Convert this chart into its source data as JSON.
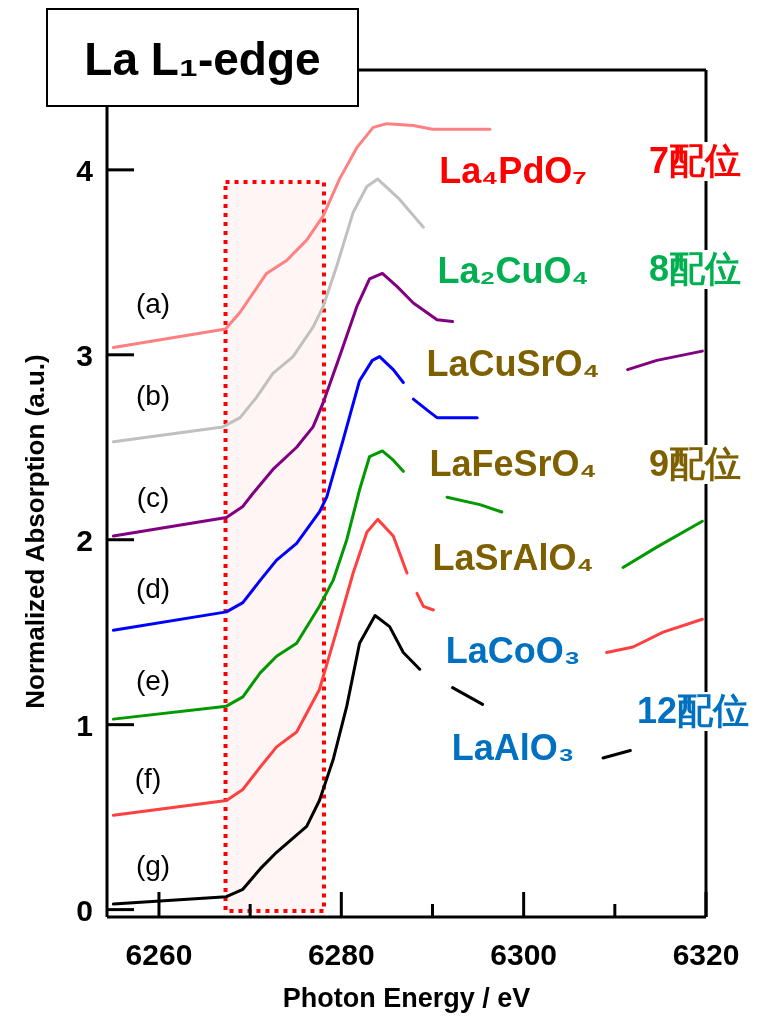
{
  "chart_data": {
    "type": "line",
    "title": "La L₁-edge",
    "xlabel": "Photon Energy / eV",
    "ylabel": "Normalized Absorption (a.u.)",
    "xlim": [
      6254.3,
      6320
    ],
    "ylim": [
      -0.04,
      4.54
    ],
    "xticks": [
      6260,
      {
        "value": 6270,
        "label": null
      },
      6280,
      {
        "value": 6290,
        "label": null
      },
      6300,
      {
        "value": 6310,
        "label": null
      },
      6320
    ],
    "yticks": [
      0,
      1,
      2,
      3,
      4
    ],
    "bands": [
      {
        "axis": "x",
        "from": 6267.3,
        "to": 6278.1,
        "color": "#ff0000"
      }
    ],
    "series": [
      {
        "color": "#ff8080",
        "x": [
          6255,
          6267.3,
          6268.9,
          6271.8,
          6274,
          6276.2,
          6278,
          6279.8,
          6281.7,
          6283.5,
          6285,
          6287.9,
          6290,
          6296.3
        ],
        "values": [
          3.04,
          3.14,
          3.23,
          3.44,
          3.51,
          3.62,
          3.75,
          3.95,
          4.12,
          4.23,
          4.25,
          4.24,
          4.22,
          4.22
        ]
      },
      {
        "color": "#c0c0c0",
        "x": [
          6255,
          6267,
          6268.9,
          6270.7,
          6272.5,
          6274.7,
          6276.9,
          6278,
          6279.5,
          6281.3,
          6282.8,
          6284,
          6286.4,
          6289
        ],
        "values": [
          2.53,
          2.61,
          2.66,
          2.77,
          2.9,
          2.99,
          3.15,
          3.26,
          3.48,
          3.77,
          3.91,
          3.95,
          3.84,
          3.69
        ]
      },
      {
        "color": "#800080",
        "x": [
          6255,
          6267.4,
          6269.2,
          6270.3,
          6272.5,
          6275.1,
          6276.9,
          6278,
          6279.8,
          6281.7,
          6283.1,
          6284.5,
          6286.1,
          6287.9,
          6290.5,
          6292.2
        ],
        "values": [
          2.02,
          2.12,
          2.18,
          2.25,
          2.38,
          2.5,
          2.61,
          2.74,
          2.99,
          3.26,
          3.41,
          3.44,
          3.37,
          3.28,
          3.19,
          3.18
        ]
      },
      {
        "color": "#800080",
        "x": [
          6311.4,
          6314.6,
          6319.6
        ],
        "values": [
          2.92,
          2.97,
          3.02
        ]
      },
      {
        "color": "#0000ff",
        "x": [
          6255,
          6267.4,
          6269.2,
          6271.1,
          6272.9,
          6275.1,
          6277.6,
          6278.4,
          6280.2,
          6282,
          6283.4,
          6284.2,
          6285.7,
          6286.8
        ],
        "values": [
          1.51,
          1.61,
          1.66,
          1.78,
          1.89,
          1.98,
          2.15,
          2.23,
          2.54,
          2.86,
          2.97,
          2.99,
          2.92,
          2.85
        ]
      },
      {
        "color": "#0000ff",
        "x": [
          6287.9,
          6289.7,
          6290.5,
          6294.9
        ],
        "values": [
          2.76,
          2.69,
          2.66,
          2.66
        ]
      },
      {
        "color": "#009900",
        "x": [
          6255,
          6267.4,
          6269.2,
          6271.1,
          6272.9,
          6275.1,
          6277.6,
          6279.1,
          6280.6,
          6282,
          6283.1,
          6284.5,
          6285.7,
          6286.8
        ],
        "values": [
          1.03,
          1.1,
          1.15,
          1.28,
          1.37,
          1.44,
          1.64,
          1.78,
          2.0,
          2.27,
          2.45,
          2.48,
          2.43,
          2.37
        ]
      },
      {
        "color": "#009900",
        "x": [
          6291.6,
          6295.2,
          6297.6
        ],
        "values": [
          2.23,
          2.19,
          2.15
        ]
      },
      {
        "color": "#009900",
        "x": [
          6310.9,
          6314.6,
          6319.6
        ],
        "values": [
          1.85,
          1.96,
          2.1
        ]
      },
      {
        "color": "#ff4040",
        "x": [
          6255,
          6267.4,
          6269.2,
          6271.1,
          6272.9,
          6275.1,
          6277.6,
          6279.5,
          6281.3,
          6282.8,
          6284,
          6285.7,
          6287.2
        ],
        "values": [
          0.51,
          0.59,
          0.65,
          0.77,
          0.88,
          0.96,
          1.19,
          1.51,
          1.82,
          2.04,
          2.11,
          2.02,
          1.82
        ]
      },
      {
        "color": "#ff4040",
        "x": [
          6288.3,
          6289,
          6290.1
        ],
        "values": [
          1.71,
          1.64,
          1.62
        ]
      },
      {
        "color": "#ff4040",
        "x": [
          6309.1,
          6312,
          6315.3,
          6319.6
        ],
        "values": [
          1.39,
          1.42,
          1.5,
          1.57
        ]
      },
      {
        "color": "#000000",
        "x": [
          6255,
          6267.4,
          6269.2,
          6271.1,
          6272.9,
          6276.2,
          6277.6,
          6279.1,
          6280.6,
          6282,
          6283.7,
          6285.3,
          6286.8,
          6288.6
        ],
        "values": [
          0.03,
          0.07,
          0.11,
          0.22,
          0.31,
          0.45,
          0.59,
          0.81,
          1.1,
          1.44,
          1.59,
          1.53,
          1.39,
          1.3
        ]
      },
      {
        "color": "#000000",
        "x": [
          6292.2,
          6295.5
        ],
        "values": [
          1.2,
          1.11
        ]
      },
      {
        "color": "#000000",
        "x": [
          6308.7,
          6311.7
        ],
        "values": [
          0.82,
          0.86
        ]
      }
    ],
    "annotations": [
      "(a)",
      "(b)",
      "(c)",
      "(d)",
      "(e)",
      "(f)",
      "(g)",
      "La₄PdO₇",
      "La₂CuO₄",
      "LaCuSrO₄",
      "LaFeSrO₄",
      "LaSrAlO₄",
      "LaCoO₃",
      "LaAlO₃",
      "7配位",
      "8配位",
      "9配位",
      "12配位"
    ]
  }
}
